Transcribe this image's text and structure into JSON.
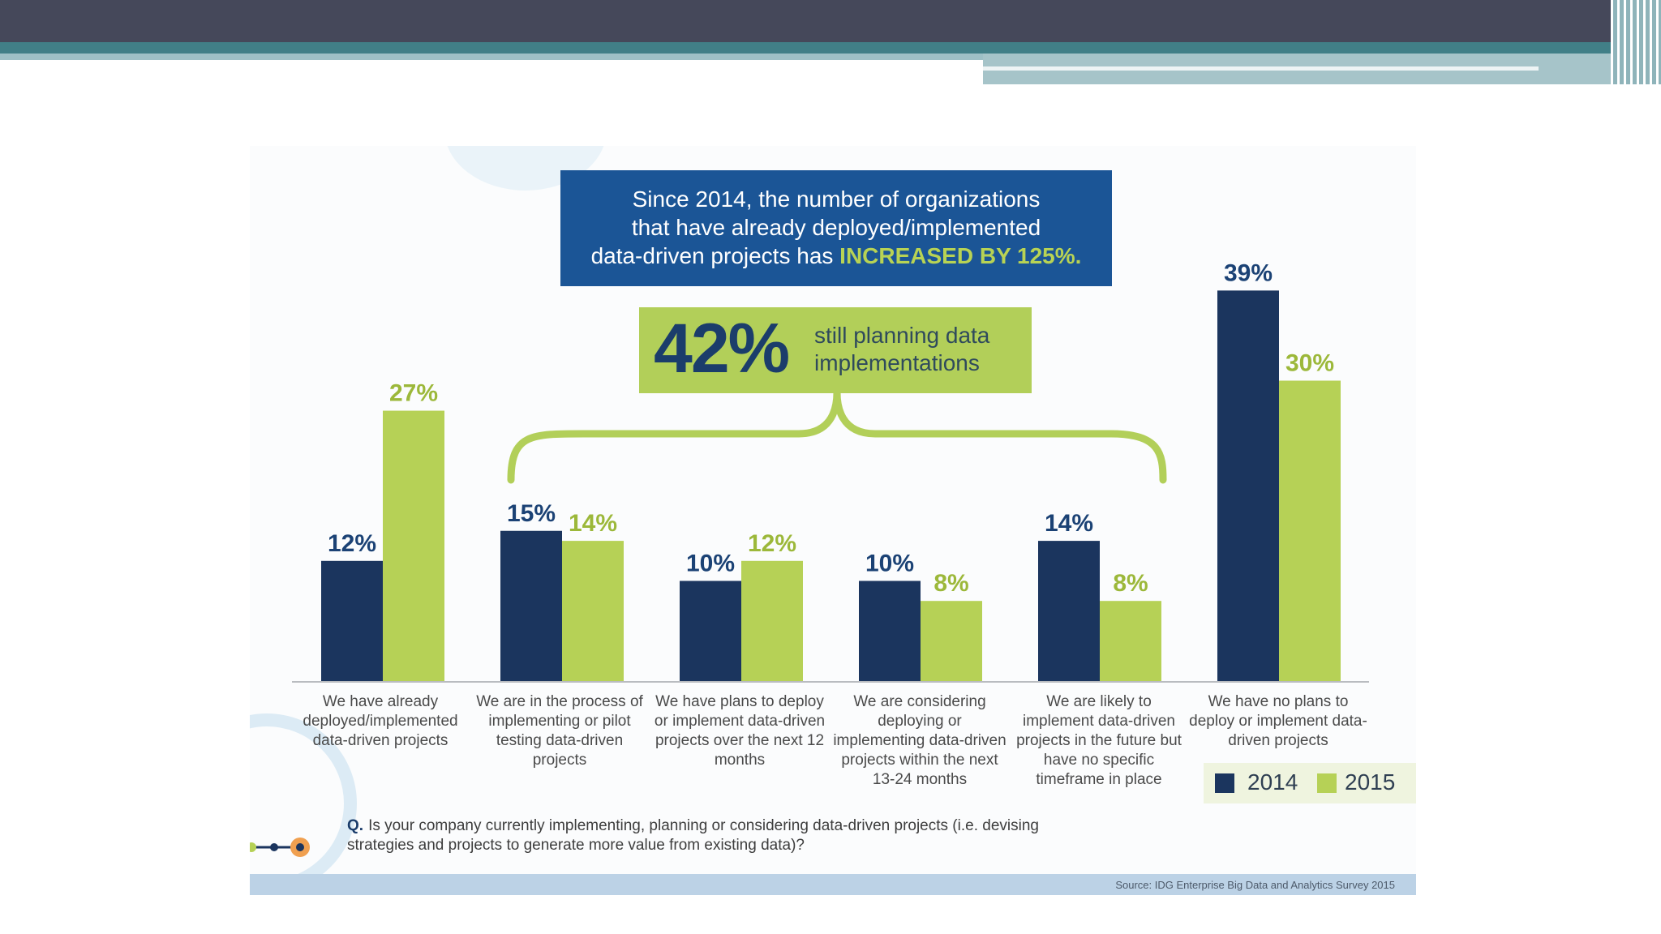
{
  "colors": {
    "series_2014": "#1b355e",
    "series_2015": "#b6d156",
    "headline_bg": "#1b5596",
    "callout_bg": "#b2cf59",
    "bracket": "#b2cf59",
    "label_2014": "#1b4275",
    "label_2015": "#9cb83a"
  },
  "headline": {
    "line1": "Since 2014, the number of organizations",
    "line2": "that have already deployed/implemented",
    "line3_prefix": "data-driven projects has ",
    "line3_emphasis": "INCREASED BY 125%."
  },
  "callout": {
    "number": "42%",
    "text": "still planning data implementations"
  },
  "question": {
    "marker": "Q.",
    "text": "Is your company currently implementing, planning or considering data-driven projects (i.e. devising strategies and projects to generate more value from existing data)?"
  },
  "source": "Source: IDG Enterprise Big Data and Analytics Survey 2015",
  "legend": [
    {
      "label": "2014",
      "color": "#1b355e"
    },
    {
      "label": "2015",
      "color": "#b6d156"
    }
  ],
  "chart_data": {
    "type": "bar",
    "title": "Since 2014, the number of organizations that have already deployed/implemented data-driven projects has INCREASED BY 125%.",
    "categories": [
      "We have already deployed/implemented data-driven projects",
      "We are in the process of implementing or pilot testing data-driven projects",
      "We have plans to deploy or implement data-driven projects over the next 12 months",
      "We are considering deploying or implementing data-driven projects within the next 13-24 months",
      "We are likely to implement data-driven projects in the future but have no specific timeframe in place",
      "We have no plans to deploy or implement data-driven projects"
    ],
    "series": [
      {
        "name": "2014",
        "values": [
          12,
          15,
          10,
          10,
          14,
          39
        ]
      },
      {
        "name": "2015",
        "values": [
          27,
          14,
          12,
          8,
          8,
          30
        ]
      }
    ],
    "value_labels": [
      [
        "12%",
        "15%",
        "10%",
        "10%",
        "14%",
        "39%"
      ],
      [
        "27%",
        "14%",
        "12%",
        "8%",
        "8%",
        "30%"
      ]
    ],
    "unit": "%",
    "ylim": [
      0,
      39
    ],
    "xlabel": "",
    "ylabel": "",
    "legend_position": "bottom-right",
    "annotation": "42% still planning data implementations"
  }
}
